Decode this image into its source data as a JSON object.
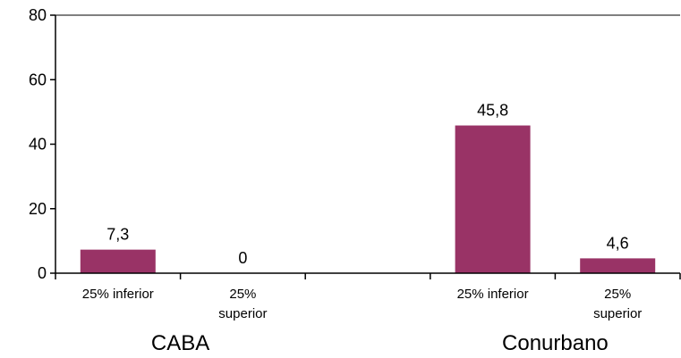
{
  "chart_data": {
    "type": "bar",
    "categories": [
      {
        "label_lines": [
          "25% inferior"
        ],
        "group": "CABA"
      },
      {
        "label_lines": [
          "25%",
          "superior"
        ],
        "group": "CABA"
      },
      {
        "label_lines": [],
        "group": ""
      },
      {
        "label_lines": [
          "25% inferior"
        ],
        "group": "Conurbano"
      },
      {
        "label_lines": [
          "25%",
          "superior"
        ],
        "group": "Conurbano"
      }
    ],
    "values": [
      7.3,
      0,
      null,
      45.8,
      4.6
    ],
    "data_labels": [
      "7,3",
      "0",
      "",
      "45,8",
      "4,6"
    ],
    "groups": [
      {
        "label": "CABA",
        "start": 0,
        "end": 1
      },
      {
        "label": "Conurbano",
        "start": 3,
        "end": 4
      }
    ],
    "ylim": [
      0,
      80
    ],
    "yticks": [
      0,
      20,
      40,
      60,
      80
    ],
    "ytick_labels": [
      "0",
      "20",
      "40",
      "60",
      "80"
    ],
    "grid": "none",
    "legend": "none",
    "colors": {
      "bar": "#993366",
      "axis": "#000000"
    }
  }
}
